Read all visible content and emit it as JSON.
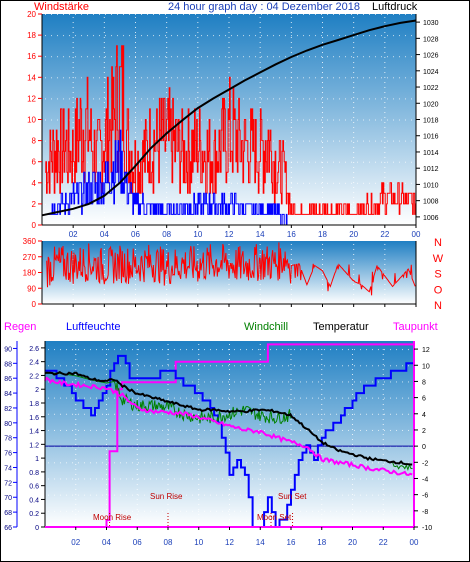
{
  "header": {
    "left_label": "Windstärke",
    "title": "24 hour graph day : 04 Dezember 2018",
    "right_label": "Luftdruck"
  },
  "legend_row": {
    "regen": "Regen",
    "luftfeuchte": "Luftfeuchte",
    "windchill": "Windchill",
    "temperatur": "Temperatur",
    "taupunkt": "Taupunkt"
  },
  "colors": {
    "wind_speed": "#ff0000",
    "wind_avg": "#0000ff",
    "pressure": "#000000",
    "temperature": "#000000",
    "windchill": "#008000",
    "humidity": "#0000ff",
    "dewpoint": "#ff00ff",
    "rain": "#ff00ff",
    "marker": "#c00000",
    "plot_top": "#1f7fc3",
    "plot_bottom": "#ffffff"
  },
  "chart_data": [
    {
      "type": "bar",
      "name": "wind",
      "x_ticks": [
        "02",
        "04",
        "06",
        "08",
        "10",
        "12",
        "14",
        "16",
        "18",
        "20",
        "22",
        "00"
      ],
      "y_left_ticks": [
        0,
        2,
        4,
        6,
        8,
        10,
        12,
        14,
        16,
        18,
        20
      ],
      "y_right_ticks": [
        1006,
        1008,
        1010,
        1012,
        1014,
        1016,
        1018,
        1020,
        1022,
        1024,
        1026,
        1028,
        1030
      ],
      "ylim_left": [
        0,
        20
      ],
      "ylim_right": [
        1005,
        1031
      ],
      "series": [
        {
          "name": "Windstärke",
          "hours": [
            0.2,
            1,
            2,
            2.5,
            3,
            3.5,
            4,
            4.3,
            4.6,
            4.9,
            5.2,
            5.5,
            6,
            7,
            8,
            9,
            10,
            11,
            12,
            13,
            14,
            14.5,
            15,
            15.5,
            16,
            17,
            18,
            19,
            20,
            21,
            22,
            23,
            24
          ],
          "values": [
            8,
            12,
            11,
            15,
            14,
            10,
            13,
            15,
            16,
            20,
            19,
            12,
            9,
            12,
            13,
            11,
            12,
            10,
            14,
            12,
            11,
            13,
            9,
            8,
            2,
            2,
            2,
            2,
            2,
            3,
            4,
            4,
            3
          ]
        },
        {
          "name": "Windmittel",
          "hours": [
            0.2,
            2,
            3,
            4,
            4.5,
            5,
            5.5,
            6,
            8,
            10,
            12,
            14,
            15,
            16,
            18,
            20,
            22,
            24
          ],
          "values": [
            2,
            4,
            5,
            6,
            8,
            9,
            5,
            3,
            2,
            3,
            3,
            2,
            2,
            0,
            0,
            0,
            0,
            0
          ]
        },
        {
          "name": "Luftdruck",
          "hours": [
            0,
            1,
            2,
            3,
            4,
            5,
            6,
            7,
            8,
            9,
            10,
            11,
            12,
            13,
            14,
            15,
            16,
            17,
            18,
            19,
            20,
            21,
            22,
            23,
            24
          ],
          "values": [
            1006.2,
            1006.6,
            1007.0,
            1007.6,
            1008.6,
            1010.2,
            1012.3,
            1014.5,
            1016.3,
            1017.9,
            1019.4,
            1020.6,
            1021.7,
            1022.8,
            1023.8,
            1024.8,
            1025.7,
            1026.5,
            1027.2,
            1027.8,
            1028.4,
            1029.0,
            1029.5,
            1029.9,
            1030.2
          ]
        }
      ]
    },
    {
      "type": "line",
      "name": "wind_direction",
      "x_ticks": [
        "02",
        "04",
        "06",
        "08",
        "10",
        "12",
        "14",
        "16",
        "18",
        "20",
        "22",
        "00"
      ],
      "y_left_ticks": [
        0,
        90,
        180,
        270,
        360
      ],
      "y_right_labels": [
        "N",
        "W",
        "S",
        "O",
        "N"
      ],
      "ylim": [
        0,
        360
      ],
      "series": [
        {
          "name": "Windrichtung",
          "hours": [
            0.3,
            1,
            2,
            3,
            4,
            5,
            6,
            7,
            8,
            9,
            10,
            11,
            12,
            13,
            14,
            15,
            15.6,
            16,
            16.5,
            17,
            17.5,
            18,
            18.5,
            19,
            20,
            20.5,
            21,
            21.5,
            22,
            22.5,
            23,
            23.5,
            24
          ],
          "values": [
            200,
            230,
            220,
            240,
            210,
            230,
            220,
            240,
            210,
            230,
            220,
            240,
            230,
            220,
            240,
            230,
            270,
            220,
            230,
            110,
            220,
            190,
            100,
            230,
            130,
            110,
            70,
            220,
            160,
            100,
            150,
            200,
            90
          ]
        }
      ]
    },
    {
      "type": "line",
      "name": "temperature_humidity",
      "x_ticks": [
        "02",
        "04",
        "06",
        "08",
        "10",
        "12",
        "14",
        "16",
        "18",
        "20",
        "22",
        "00"
      ],
      "y_regen_ticks": [
        0,
        0.2,
        0.4,
        0.6,
        0.8,
        1,
        1.2,
        1.4,
        1.6,
        1.8,
        2,
        2.2,
        2.4,
        2.6
      ],
      "y_humidity_ticks": [
        66,
        68,
        70,
        72,
        74,
        76,
        78,
        80,
        82,
        84,
        86,
        88,
        90
      ],
      "y_temp_ticks": [
        -10,
        -8,
        -6,
        -4,
        -2,
        0,
        2,
        4,
        6,
        8,
        10,
        12
      ],
      "ylim_temp": [
        -10,
        13
      ],
      "ylim_humidity": [
        66,
        91
      ],
      "ylim_rain": [
        0,
        2.7
      ],
      "annotations": [
        {
          "text": "Moon Rise",
          "hour": 4.2
        },
        {
          "text": "Sun Rise",
          "hour": 8.0
        },
        {
          "text": "Sun Set",
          "hour": 16.1
        },
        {
          "text": "Moon Set",
          "hour": 14.7
        }
      ],
      "series": [
        {
          "name": "Temperatur",
          "hours": [
            0,
            1,
            2,
            3,
            4,
            4.5,
            5,
            6,
            7,
            8,
            9,
            10,
            11,
            12,
            13,
            14,
            15,
            16,
            17,
            18,
            19,
            20,
            21,
            22,
            23,
            24
          ],
          "values": [
            9,
            9,
            9,
            8.3,
            8,
            8.3,
            7.5,
            6.5,
            6,
            5.5,
            5,
            4.5,
            4.5,
            4.3,
            4.3,
            4.5,
            4.3,
            3.8,
            2.2,
            0.5,
            -0.5,
            -1,
            -1.5,
            -1.8,
            -2,
            -2.3
          ]
        },
        {
          "name": "Windchill",
          "hours": [
            0,
            1,
            2,
            3,
            4,
            4.5,
            5,
            6,
            7,
            8,
            9,
            10,
            11,
            12,
            13,
            14,
            15,
            16
          ],
          "values": [
            9,
            9,
            8.7,
            8.2,
            7.8,
            8,
            5.8,
            5,
            5,
            4.8,
            4,
            3.5,
            3.5,
            4,
            4.5,
            3.8,
            3.5,
            3.8
          ]
        },
        {
          "name": "Luftfeuchte",
          "hours": [
            0,
            1,
            2,
            3,
            4,
            4.5,
            5,
            5.5,
            6,
            7,
            8,
            9,
            10,
            11,
            11.5,
            12,
            12.5,
            13,
            13.5,
            14,
            14.5,
            15,
            15.5,
            16,
            16.5,
            17,
            17.5,
            18,
            19,
            20,
            21,
            22,
            23,
            24
          ],
          "values": [
            87,
            86,
            83,
            81,
            85,
            88,
            89,
            86,
            86,
            86,
            87,
            85,
            84,
            81,
            78,
            73,
            75,
            73,
            66,
            66,
            70,
            66,
            67,
            71,
            75,
            77,
            75,
            78,
            80,
            83,
            85,
            86,
            87,
            88
          ]
        },
        {
          "name": "Taupunkt",
          "hours": [
            0,
            1,
            2,
            3,
            4,
            5,
            6,
            7,
            8,
            9,
            10,
            11,
            12,
            13,
            14,
            15,
            16,
            17,
            18,
            19,
            20,
            21,
            22,
            23,
            24
          ],
          "values": [
            8.3,
            7.8,
            7.6,
            7.4,
            7.2,
            6.3,
            4.7,
            4.3,
            4.2,
            4,
            3.6,
            3,
            2.5,
            2,
            1.8,
            1.1,
            0.5,
            0,
            -1.6,
            -2,
            -2.3,
            -2.7,
            -3,
            -3.3,
            -3.6
          ]
        },
        {
          "name": "Regen",
          "hours": [
            0,
            3.5,
            4.0,
            4.2,
            4.7,
            5.0,
            8.0,
            8.5,
            14.2,
            14.5,
            24
          ],
          "values": [
            0,
            0,
            0.1,
            1.1,
            2.0,
            2.1,
            2.1,
            2.4,
            2.4,
            2.65,
            2.65
          ]
        }
      ]
    }
  ]
}
